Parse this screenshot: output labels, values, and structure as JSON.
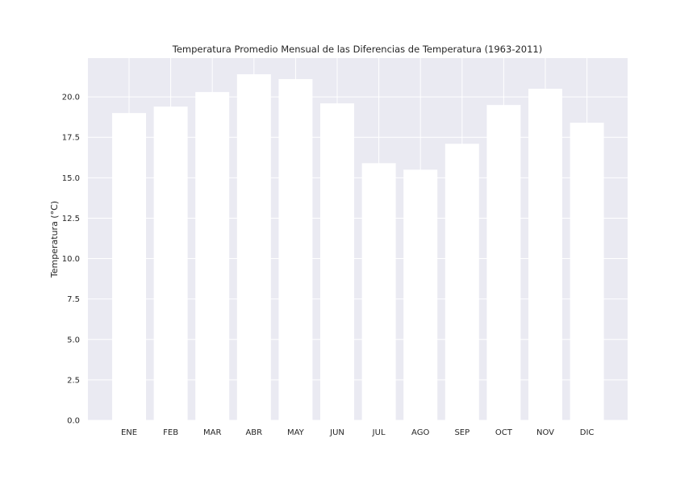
{
  "chart_data": {
    "type": "bar",
    "title": "Temperatura Promedio Mensual de las Diferencias de Temperatura (1963-2011)",
    "xlabel": "",
    "ylabel": "Temperatura (°C)",
    "categories": [
      "ENE",
      "FEB",
      "MAR",
      "ABR",
      "MAY",
      "JUN",
      "JUL",
      "AGO",
      "SEP",
      "OCT",
      "NOV",
      "DIC"
    ],
    "values": [
      19.0,
      19.4,
      20.3,
      21.4,
      21.1,
      19.6,
      15.9,
      15.5,
      17.1,
      19.5,
      20.5,
      18.4
    ],
    "ylim": [
      0,
      22.4
    ],
    "yticks": [
      0.0,
      2.5,
      5.0,
      7.5,
      10.0,
      12.5,
      15.0,
      17.5,
      20.0
    ],
    "ytick_labels": [
      "0.0",
      "2.5",
      "5.0",
      "7.5",
      "10.0",
      "12.5",
      "15.0",
      "17.5",
      "20.0"
    ],
    "grid": true,
    "colors": {
      "plot_background": "#eaeaf2",
      "bar": "#ffffff",
      "grid": "#ffffff",
      "text": "#262626"
    }
  }
}
